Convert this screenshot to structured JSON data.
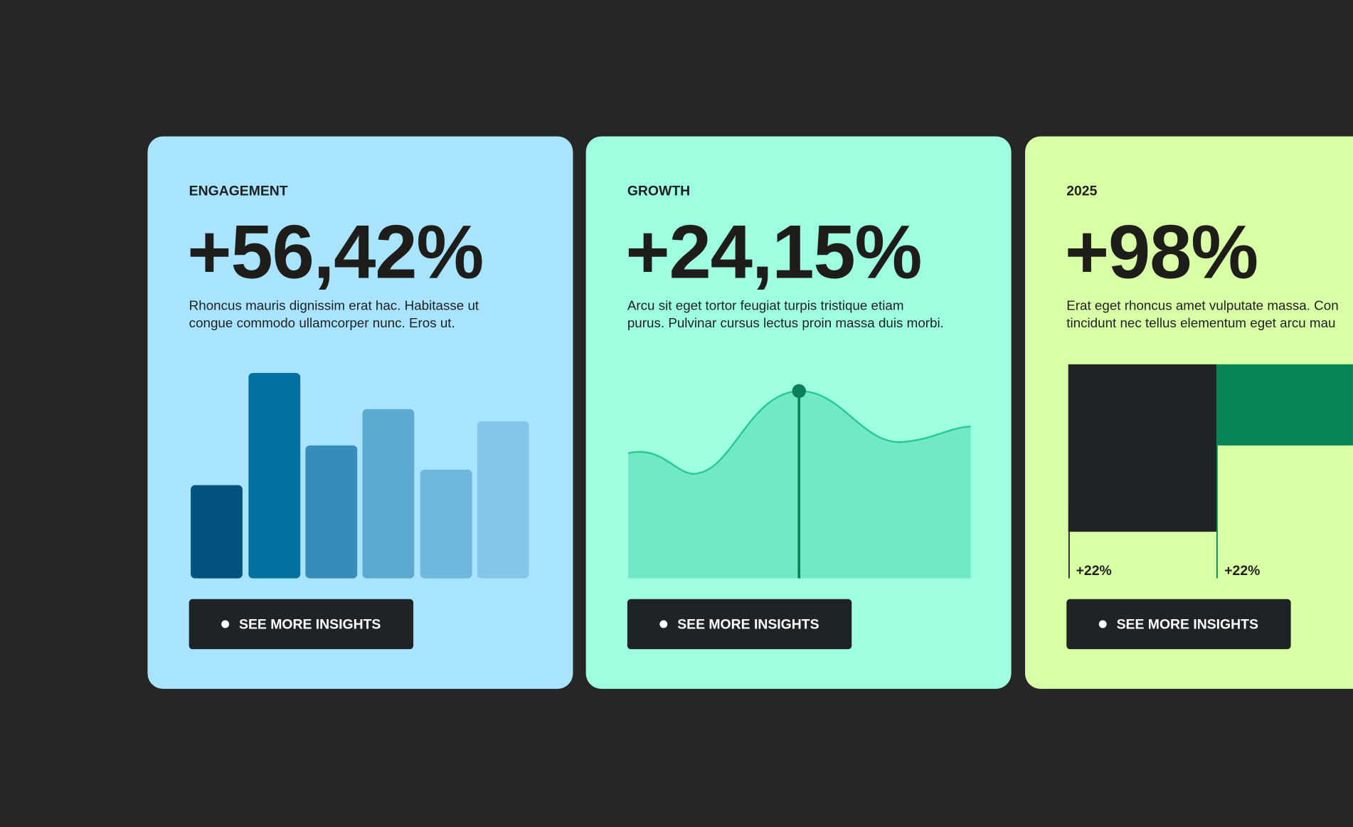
{
  "cards": [
    {
      "label": "ENGAGEMENT",
      "value": "+56,42%",
      "description": [
        "Rhoncus mauris dignissim erat hac. Habitasse ut",
        "congue commodo ullamcorper nunc. Eros ut."
      ],
      "button": "SEE MORE INSIGHTS"
    },
    {
      "label": "GROWTH",
      "value": "+24,15%",
      "description": [
        "Arcu sit eget tortor feugiat turpis tristique etiam",
        "purus. Pulvinar cursus lectus proin massa duis morbi."
      ],
      "button": "SEE MORE INSIGHTS"
    },
    {
      "label": "2025",
      "value": "+98%",
      "description": [
        "Erat eget rhoncus amet vulputate massa. Con",
        "tincidunt nec tellus elementum eget arcu mau"
      ],
      "button": "SEE MORE INSIGHTS",
      "bar_labels": [
        "+22%",
        "+22%"
      ]
    }
  ]
}
